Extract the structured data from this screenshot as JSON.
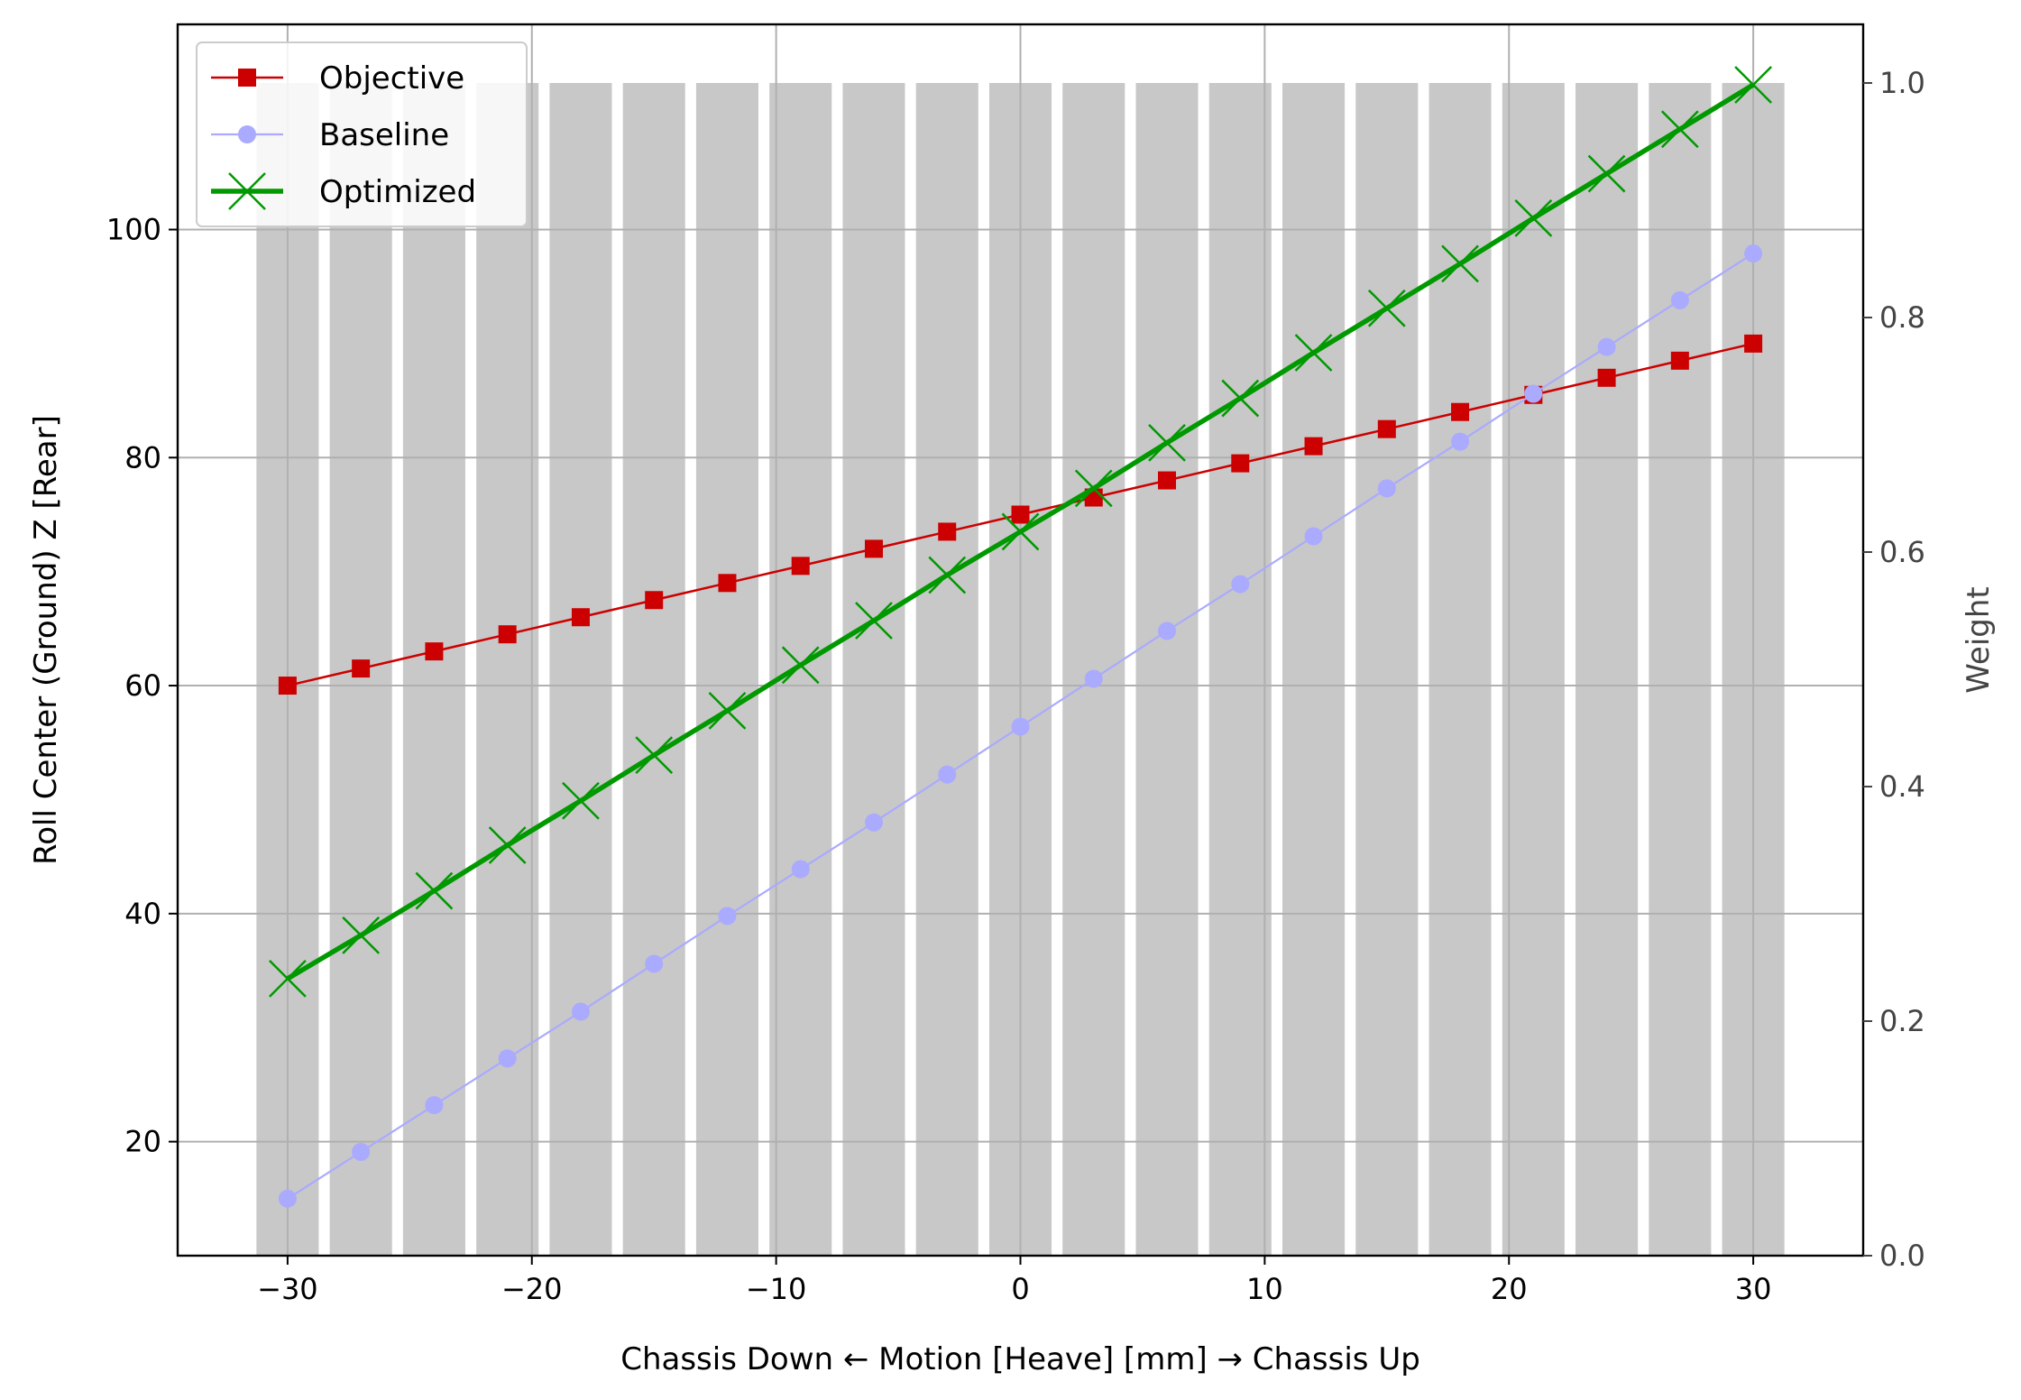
{
  "chart_data": {
    "type": "line",
    "xlabel": "Chassis Down ← Motion [Heave] [mm] → Chassis Up",
    "ylabel": "Roll Center (Ground) Z [Rear]",
    "y2label": "Weight",
    "xlim": [
      -34.5,
      34.5
    ],
    "ylim": [
      10,
      118
    ],
    "y2lim": [
      0,
      1.05
    ],
    "xticks": [
      -30,
      -20,
      -10,
      0,
      10,
      20,
      30
    ],
    "yticks": [
      20,
      40,
      60,
      80,
      100
    ],
    "y2ticks": [
      0.0,
      0.2,
      0.4,
      0.6,
      0.8,
      1.0
    ],
    "x": [
      -30,
      -27,
      -24,
      -21,
      -18,
      -15,
      -12,
      -9,
      -6,
      -3,
      0,
      3,
      6,
      9,
      12,
      15,
      18,
      21,
      24,
      27,
      30
    ],
    "grid": true,
    "legend_position": "top-left",
    "weights": {
      "name": "Weight",
      "color": "#c8c8c8",
      "bar_width": 2.55,
      "values": [
        1,
        1,
        1,
        1,
        1,
        1,
        1,
        1,
        1,
        1,
        1,
        1,
        1,
        1,
        1,
        1,
        1,
        1,
        1,
        1,
        1
      ]
    },
    "series": [
      {
        "name": "Objective",
        "color": "#cc0000",
        "marker": "square",
        "values": [
          60.0,
          61.5,
          63.0,
          64.5,
          66.0,
          67.5,
          69.0,
          70.5,
          72.0,
          73.5,
          75.0,
          76.5,
          78.0,
          79.5,
          81.0,
          82.5,
          84.0,
          85.5,
          87.0,
          88.5,
          90.0
        ]
      },
      {
        "name": "Baseline",
        "color": "#aaaaff",
        "marker": "circle",
        "values": [
          15.0,
          19.1,
          23.2,
          27.3,
          31.4,
          35.6,
          39.8,
          43.9,
          48.0,
          52.2,
          56.4,
          60.6,
          64.8,
          68.9,
          73.1,
          77.3,
          81.4,
          85.6,
          89.7,
          93.8,
          97.9
        ]
      },
      {
        "name": "Optimized",
        "color": "#009900",
        "marker": "x",
        "values": [
          34.3,
          38.1,
          42.0,
          46.0,
          49.9,
          53.9,
          57.8,
          61.8,
          65.7,
          69.7,
          73.5,
          77.3,
          81.3,
          85.2,
          89.2,
          93.1,
          97.0,
          101.0,
          104.9,
          108.8,
          112.7
        ]
      }
    ]
  }
}
